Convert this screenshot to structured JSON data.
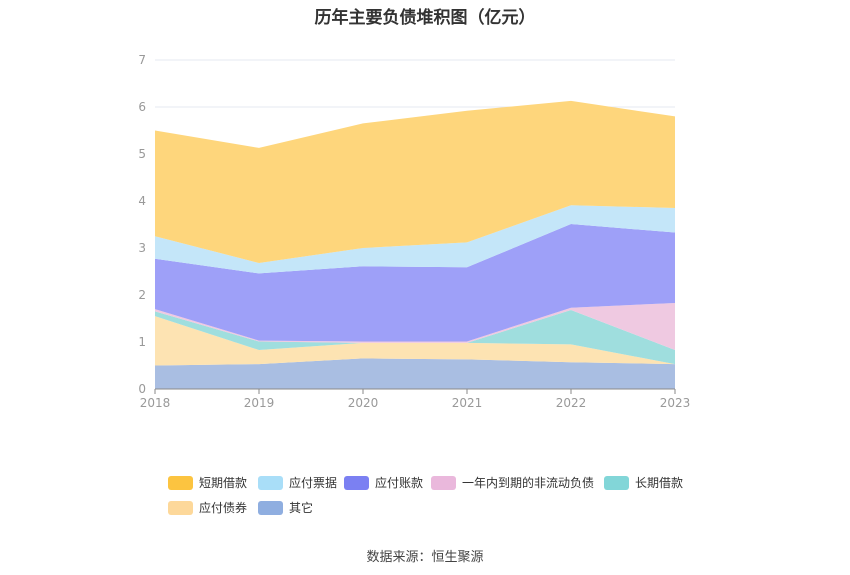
{
  "chart_data": {
    "type": "area",
    "stacked": true,
    "title": "历年主要负债堆积图（亿元）",
    "x": [
      "2018",
      "2019",
      "2020",
      "2021",
      "2022",
      "2023"
    ],
    "ylim": [
      0,
      7
    ],
    "yticks": [
      "0",
      "1",
      "2",
      "3",
      "4",
      "5",
      "6",
      "7"
    ],
    "grid": true,
    "legend_position": "bottom",
    "series": [
      {
        "name": "其它",
        "color": "#a9bee2",
        "values": [
          0.5,
          0.53,
          0.65,
          0.63,
          0.57,
          0.53
        ]
      },
      {
        "name": "应付债券",
        "color": "#fde3b2",
        "values": [
          1.05,
          0.3,
          0.33,
          0.35,
          0.38,
          0.0
        ]
      },
      {
        "name": "长期借款",
        "color": "#9fdede",
        "values": [
          0.1,
          0.18,
          0.0,
          0.0,
          0.73,
          0.3
        ]
      },
      {
        "name": "一年内到期的非流动负债",
        "color": "#efc9e1",
        "values": [
          0.05,
          0.02,
          0.03,
          0.03,
          0.05,
          1.0
        ]
      },
      {
        "name": "应付账款",
        "color": "#9ea0f8",
        "values": [
          1.07,
          1.43,
          1.6,
          1.58,
          1.78,
          1.5
        ]
      },
      {
        "name": "应付票据",
        "color": "#c4e6f9",
        "values": [
          0.48,
          0.22,
          0.39,
          0.53,
          0.4,
          0.52
        ]
      },
      {
        "name": "短期借款",
        "color": "#fed67c",
        "values": [
          2.25,
          2.45,
          2.65,
          2.8,
          2.22,
          1.95
        ]
      }
    ],
    "legend": [
      {
        "name": "短期借款",
        "color": "#fcc440"
      },
      {
        "name": "应付票据",
        "color": "#a9def8"
      },
      {
        "name": "应付账款",
        "color": "#7b80f2"
      },
      {
        "name": "一年内到期的非流动负债",
        "color": "#eab8dc"
      },
      {
        "name": "长期借款",
        "color": "#82d6d8"
      },
      {
        "name": "应付债券",
        "color": "#fdd89a"
      },
      {
        "name": "其它",
        "color": "#8faee0"
      }
    ]
  },
  "source": "数据来源：恒生聚源"
}
